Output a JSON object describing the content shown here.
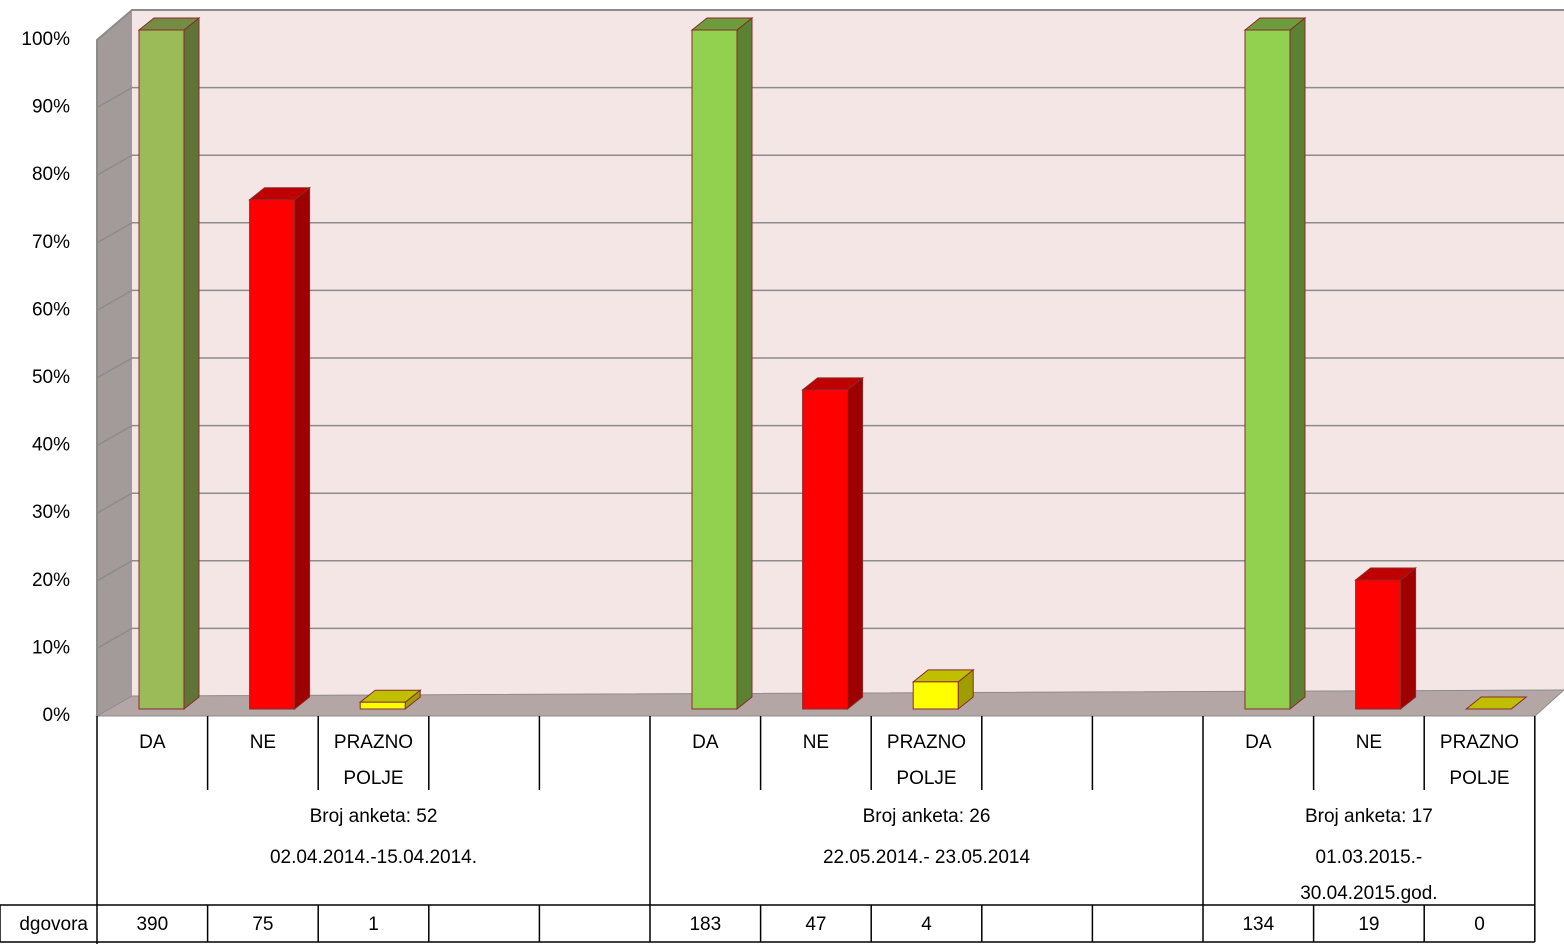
{
  "chart_data": {
    "type": "bar3d",
    "categories": [
      "DA",
      "NE",
      "PRAZNO POLJE",
      null,
      null,
      "DA",
      "NE",
      "PRAZNO POLJE",
      null,
      null,
      "DA",
      "NE",
      "PRAZNO POLJE"
    ],
    "series": [
      {
        "name": "dgovora",
        "values": [
          390,
          75,
          1,
          null,
          null,
          183,
          47,
          4,
          null,
          null,
          134,
          19,
          0
        ],
        "colors": [
          "#9bbb59",
          "#ff0000",
          "#ffff00",
          null,
          null,
          "#92d050",
          "#ff0000",
          "#ffff00",
          null,
          null,
          "#92d050",
          "#ff0000",
          "#ffff00"
        ]
      }
    ],
    "groups": [
      {
        "title": "Broj anketa: 52",
        "period": [
          "02.04.2014.-15.04.2014."
        ]
      },
      {
        "title": "Broj anketa: 26",
        "period": [
          "22.05.2014.- 23.05.2014"
        ]
      },
      {
        "title": "Broj anketa: 17",
        "period": [
          "01.03.2015.-",
          "30.04.2015.god."
        ]
      }
    ],
    "ylim": [
      0,
      100
    ],
    "yticks": [
      {
        "value": 0,
        "label": "0%"
      },
      {
        "value": 10,
        "label": "10%"
      },
      {
        "value": 20,
        "label": "20%"
      },
      {
        "value": 30,
        "label": "30%"
      },
      {
        "value": 40,
        "label": "40%"
      },
      {
        "value": 50,
        "label": "50%"
      },
      {
        "value": 60,
        "label": "60%"
      },
      {
        "value": 70,
        "label": "70%"
      },
      {
        "value": 80,
        "label": "80%"
      },
      {
        "value": 90,
        "label": "90%"
      },
      {
        "value": 100,
        "label": "100%"
      }
    ],
    "grid": true
  }
}
